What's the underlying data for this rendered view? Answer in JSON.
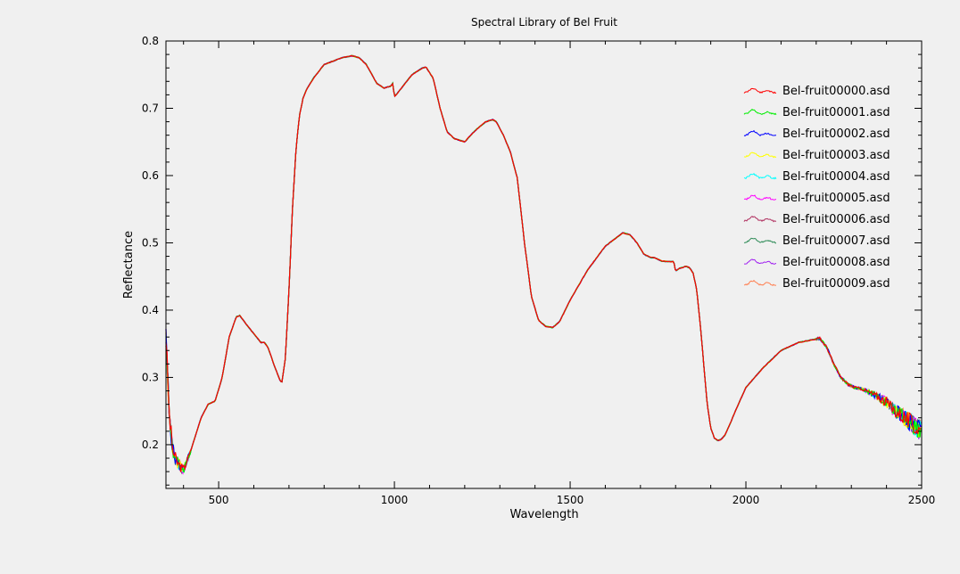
{
  "colors": {
    "background": "#f0f0f0",
    "plot_background": "#f0f0f0",
    "axis": "#000000"
  },
  "chart_data": {
    "type": "line",
    "title": "Spectral Library of Bel Fruit",
    "xlabel": "Wavelength",
    "ylabel": "Reflectance",
    "xlim": [
      350,
      2500
    ],
    "ylim": [
      0.135,
      0.8
    ],
    "xticks": [
      500,
      1000,
      1500,
      2000,
      2500
    ],
    "yticks": [
      0.2,
      0.3,
      0.4,
      0.5,
      0.6,
      0.7,
      0.8
    ],
    "grid": false,
    "legend_position": "top-right",
    "base_spectrum": {
      "x": [
        350,
        360,
        370,
        380,
        390,
        400,
        420,
        450,
        470,
        490,
        510,
        530,
        550,
        560,
        580,
        600,
        620,
        630,
        640,
        660,
        675,
        680,
        690,
        700,
        710,
        720,
        730,
        740,
        750,
        770,
        800,
        850,
        880,
        900,
        920,
        950,
        970,
        990,
        995,
        1000,
        1005,
        1020,
        1050,
        1080,
        1090,
        1110,
        1130,
        1150,
        1170,
        1200,
        1210,
        1230,
        1260,
        1280,
        1290,
        1310,
        1330,
        1350,
        1370,
        1390,
        1410,
        1430,
        1450,
        1470,
        1500,
        1550,
        1600,
        1650,
        1670,
        1690,
        1710,
        1730,
        1740,
        1760,
        1780,
        1795,
        1800,
        1810,
        1830,
        1840,
        1850,
        1860,
        1870,
        1880,
        1890,
        1900,
        1910,
        1920,
        1930,
        1940,
        1950,
        1970,
        2000,
        2050,
        2100,
        2150,
        2200,
        2210,
        2230,
        2250,
        2270,
        2290,
        2310,
        2330,
        2350,
        2380,
        2400,
        2420,
        2440,
        2460,
        2480,
        2500
      ],
      "y": [
        0.36,
        0.24,
        0.19,
        0.175,
        0.168,
        0.163,
        0.19,
        0.24,
        0.26,
        0.265,
        0.3,
        0.36,
        0.39,
        0.392,
        0.378,
        0.365,
        0.352,
        0.352,
        0.345,
        0.315,
        0.295,
        0.293,
        0.33,
        0.43,
        0.55,
        0.64,
        0.69,
        0.715,
        0.728,
        0.745,
        0.765,
        0.775,
        0.778,
        0.775,
        0.765,
        0.737,
        0.73,
        0.733,
        0.737,
        0.718,
        0.72,
        0.73,
        0.75,
        0.76,
        0.761,
        0.745,
        0.7,
        0.665,
        0.655,
        0.65,
        0.656,
        0.667,
        0.68,
        0.683,
        0.68,
        0.66,
        0.635,
        0.595,
        0.5,
        0.42,
        0.385,
        0.376,
        0.374,
        0.383,
        0.415,
        0.46,
        0.495,
        0.515,
        0.512,
        0.5,
        0.483,
        0.478,
        0.478,
        0.473,
        0.472,
        0.472,
        0.458,
        0.462,
        0.465,
        0.463,
        0.455,
        0.43,
        0.38,
        0.32,
        0.26,
        0.225,
        0.21,
        0.206,
        0.208,
        0.214,
        0.225,
        0.25,
        0.285,
        0.315,
        0.34,
        0.352,
        0.357,
        0.358,
        0.345,
        0.32,
        0.3,
        0.29,
        0.285,
        0.283,
        0.278,
        0.27,
        0.263,
        0.252,
        0.245,
        0.237,
        0.228,
        0.22
      ]
    },
    "series": [
      {
        "name": "Bel-fruit00000.asd",
        "color": "#ff0000"
      },
      {
        "name": "Bel-fruit00001.asd",
        "color": "#00ee00"
      },
      {
        "name": "Bel-fruit00002.asd",
        "color": "#0000ff"
      },
      {
        "name": "Bel-fruit00003.asd",
        "color": "#ffff00"
      },
      {
        "name": "Bel-fruit00004.asd",
        "color": "#00ffff"
      },
      {
        "name": "Bel-fruit00005.asd",
        "color": "#ff00ff"
      },
      {
        "name": "Bel-fruit00006.asd",
        "color": "#b03060"
      },
      {
        "name": "Bel-fruit00007.asd",
        "color": "#2e8b57"
      },
      {
        "name": "Bel-fruit00008.asd",
        "color": "#a020f0"
      },
      {
        "name": "Bel-fruit00009.asd",
        "color": "#ff7f50"
      }
    ]
  }
}
